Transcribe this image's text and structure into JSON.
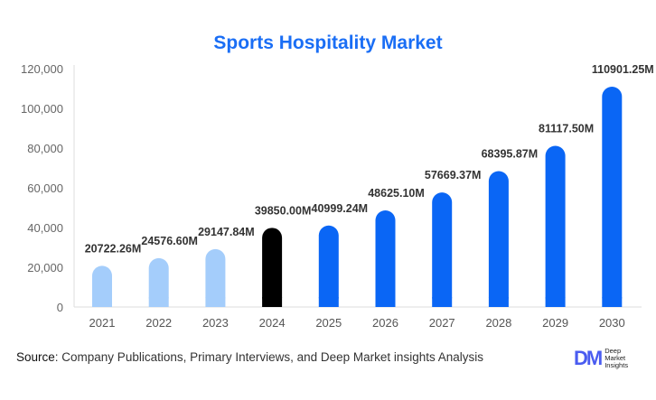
{
  "chart_data": {
    "type": "bar",
    "title": "Sports Hospitality Market",
    "categories": [
      "2021",
      "2022",
      "2023",
      "2024",
      "2025",
      "2026",
      "2027",
      "2028",
      "2029",
      "2030"
    ],
    "values": [
      20722.26,
      24576.6,
      29147.84,
      39850.0,
      40999.24,
      48625.1,
      57669.37,
      68395.87,
      81117.5,
      110901.25
    ],
    "data_labels": [
      "20722.26M",
      "24576.60M",
      "29147.84M",
      "39850.00M",
      "40999.24M",
      "48625.10M",
      "57669.37M",
      "68395.87M",
      "81117.50M",
      "110901.25M"
    ],
    "ylim": [
      0,
      120000
    ],
    "yticks": [
      "0",
      "20,000",
      "40,000",
      "60,000",
      "80,000",
      "100,000",
      "120,000"
    ],
    "grid": false,
    "colors": {
      "historical": "#a4cdfb",
      "base_year": "#000000",
      "forecast": "#0a66f5"
    }
  },
  "source": {
    "label": "Source",
    "text": ": Company Publications, Primary Interviews, and Deep Market insights Analysis"
  },
  "logo": {
    "mark": "DM",
    "text": "Deep Market Insights"
  }
}
